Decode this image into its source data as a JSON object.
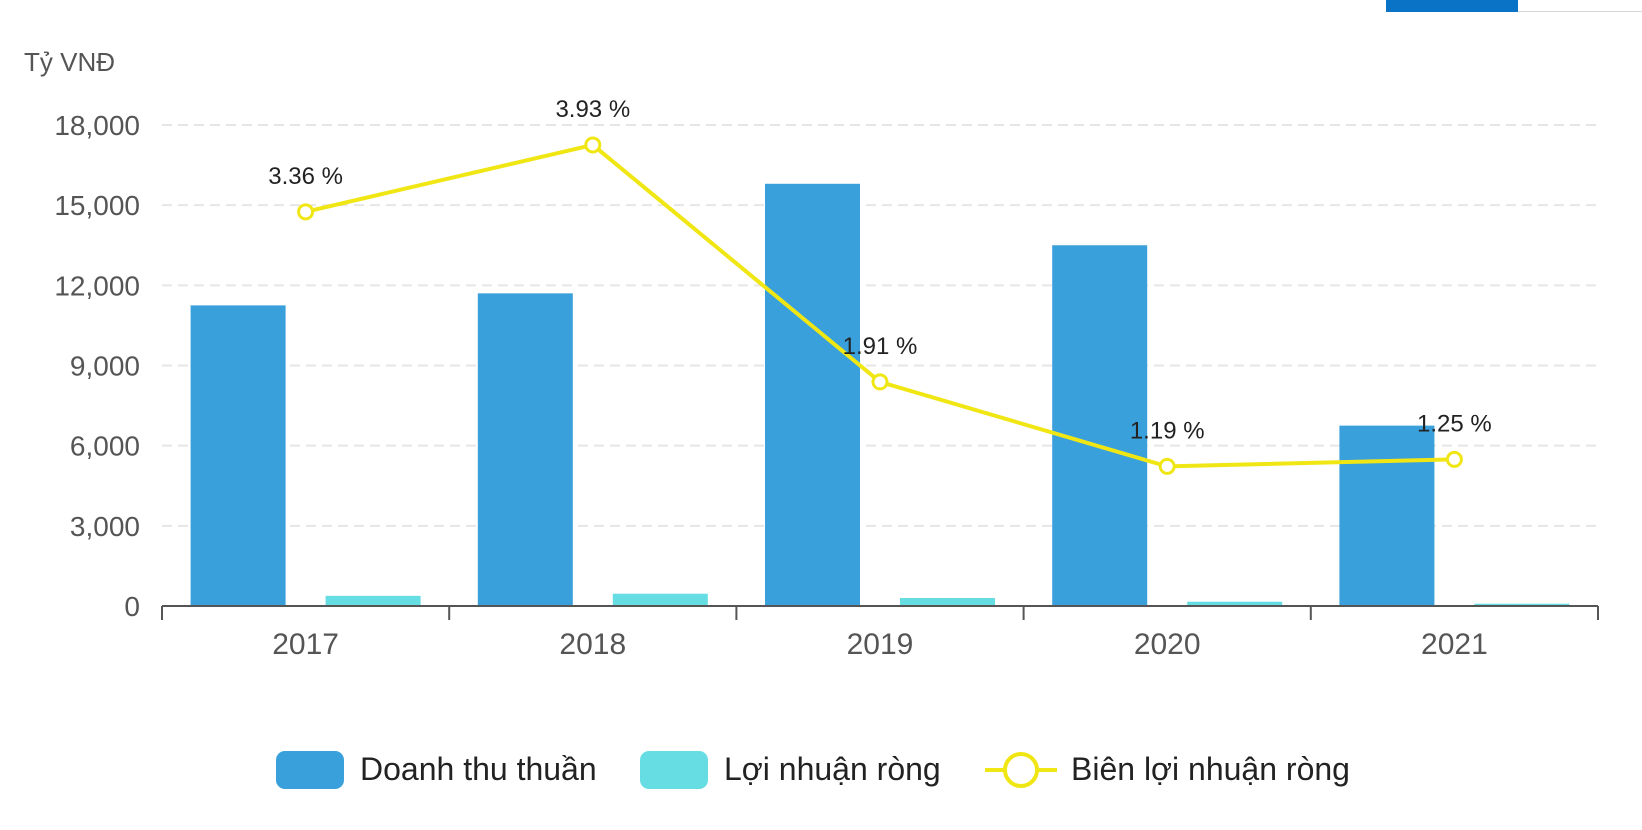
{
  "tabs": [
    {
      "label": "",
      "active": true
    },
    {
      "label": "",
      "active": false
    }
  ],
  "chart_data": {
    "type": "bar",
    "ylabel": "Tỷ VNĐ",
    "ylim": [
      0,
      18000
    ],
    "yticks": [
      "0",
      "3,000",
      "6,000",
      "9,000",
      "12,000",
      "15,000",
      "18,000"
    ],
    "ytick_values": [
      0,
      3000,
      6000,
      9000,
      12000,
      15000,
      18000
    ],
    "categories": [
      "2017",
      "2018",
      "2019",
      "2020",
      "2021"
    ],
    "grid": true,
    "legend_position": "bottom",
    "series": [
      {
        "name": "Doanh thu thuần",
        "type": "bar",
        "color": "#3aa0db",
        "values": [
          11250,
          11700,
          15800,
          13500,
          6750
        ]
      },
      {
        "name": "Lợi nhuận ròng",
        "type": "bar",
        "color": "#66dde3",
        "values": [
          380,
          460,
          300,
          160,
          85
        ]
      },
      {
        "name": "Biên lợi nhuận ròng",
        "type": "line",
        "color": "#f0e614",
        "axis": "secondary",
        "values": [
          3.36,
          3.93,
          1.91,
          1.19,
          1.25
        ],
        "labels": [
          "3.36 %",
          "3.93 %",
          "1.91 %",
          "1.19 %",
          "1.25 %"
        ]
      }
    ]
  }
}
